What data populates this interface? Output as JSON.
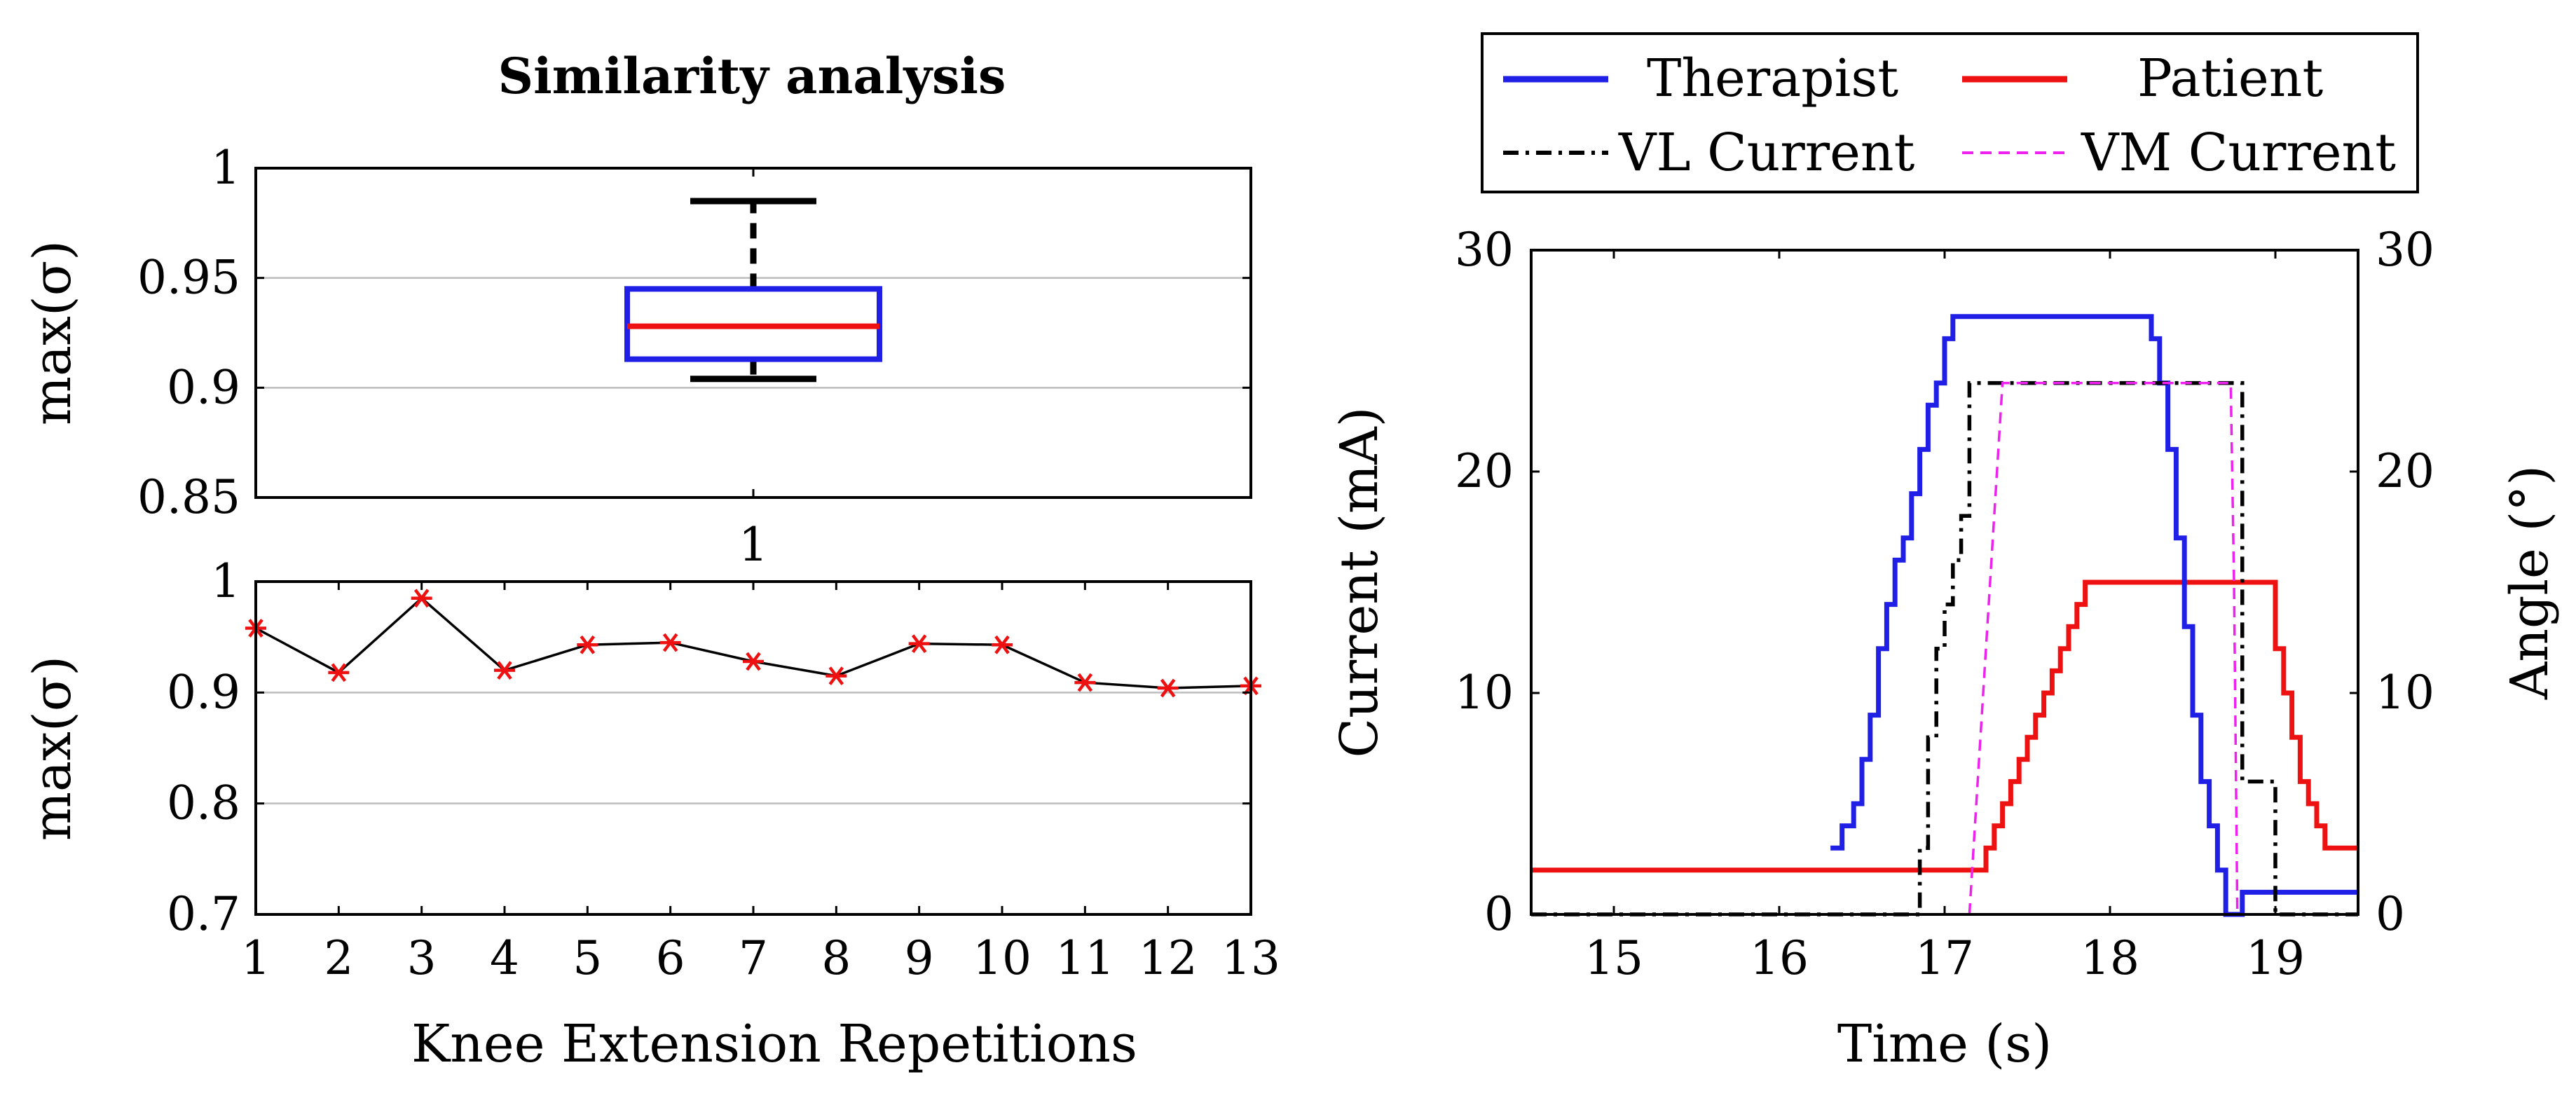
{
  "chart_data": [
    {
      "type": "box",
      "title": "Similarity analysis",
      "xlabel": "",
      "ylabel": "max(σ)",
      "x_tick_labels": [
        "1"
      ],
      "y_tick_labels": [
        "0.85",
        "0.9",
        "0.95",
        "1"
      ],
      "ylim": [
        0.85,
        1.0
      ],
      "yticks": [
        0.85,
        0.9,
        0.95,
        1.0
      ],
      "grid": true,
      "box": {
        "whisker_low": 0.904,
        "q1": 0.913,
        "median": 0.928,
        "q3": 0.945,
        "whisker_high": 0.985
      },
      "colors": {
        "box": "#1f1fe6",
        "median": "#ee1111",
        "whisker": "#000000"
      }
    },
    {
      "type": "line",
      "title": "",
      "xlabel": "Knee Extension Repetitions",
      "ylabel": "max(σ)",
      "x_tick_labels": [
        "1",
        "2",
        "3",
        "4",
        "5",
        "6",
        "7",
        "8",
        "9",
        "10",
        "11",
        "12",
        "13"
      ],
      "y_tick_labels": [
        "0.7",
        "0.8",
        "0.9",
        "1"
      ],
      "xlim": [
        1,
        13
      ],
      "ylim": [
        0.7,
        1.0
      ],
      "yticks": [
        0.7,
        0.8,
        0.9,
        1.0
      ],
      "grid": true,
      "x": [
        1,
        2,
        3,
        4,
        5,
        6,
        7,
        8,
        9,
        10,
        11,
        12,
        13
      ],
      "values": [
        0.958,
        0.918,
        0.985,
        0.92,
        0.943,
        0.945,
        0.928,
        0.915,
        0.944,
        0.943,
        0.909,
        0.904,
        0.906
      ],
      "colors": {
        "line": "#000000",
        "marker": "#ee1111"
      }
    },
    {
      "type": "line",
      "title": "",
      "xlabel": "Time (s)",
      "ylabel": "Current (mA)",
      "y2label": "Angle (°)",
      "x_tick_labels": [
        "15",
        "16",
        "17",
        "18",
        "19"
      ],
      "y_tick_labels": [
        "0",
        "10",
        "20",
        "30"
      ],
      "y2_tick_labels": [
        "0",
        "10",
        "20",
        "30"
      ],
      "xlim": [
        14.5,
        19.5
      ],
      "ylim": [
        0,
        30
      ],
      "y2lim": [
        0,
        30
      ],
      "xticks": [
        15,
        16,
        17,
        18,
        19
      ],
      "yticks": [
        0,
        10,
        20,
        30
      ],
      "legend": {
        "position": "top",
        "entries": [
          "Therapist",
          "Patient",
          "VL Current",
          "VM Current"
        ]
      },
      "series": [
        {
          "name": "Therapist",
          "color": "#1f1fe6",
          "style": "solid",
          "axis": "left",
          "step": true,
          "x": [
            16.31,
            16.38,
            16.45,
            16.5,
            16.55,
            16.6,
            16.65,
            16.7,
            16.75,
            16.8,
            16.85,
            16.9,
            16.95,
            17.0,
            17.05,
            17.1,
            18.25,
            18.3,
            18.35,
            18.4,
            18.45,
            18.5,
            18.55,
            18.6,
            18.65,
            18.7,
            18.75,
            18.8,
            19.5
          ],
          "y": [
            3,
            4,
            5,
            7,
            9,
            12,
            14,
            16,
            17,
            19,
            21,
            23,
            24,
            26,
            27,
            27,
            26,
            24,
            21,
            17,
            13,
            9,
            6,
            4,
            2,
            0,
            0,
            1,
            1
          ]
        },
        {
          "name": "Patient",
          "color": "#ee1111",
          "style": "solid",
          "axis": "right",
          "step": true,
          "x": [
            14.5,
            17.2,
            17.25,
            17.3,
            17.35,
            17.4,
            17.45,
            17.5,
            17.55,
            17.6,
            17.65,
            17.7,
            17.75,
            17.8,
            17.85,
            17.9,
            18.95,
            19.0,
            19.05,
            19.1,
            19.15,
            19.2,
            19.25,
            19.3,
            19.5
          ],
          "y": [
            2,
            2,
            3,
            4,
            5,
            6,
            7,
            8,
            9,
            10,
            11,
            12,
            13,
            14,
            15,
            15,
            15,
            12,
            10,
            8,
            6,
            5,
            4,
            3,
            3
          ]
        },
        {
          "name": "VL Current",
          "color": "#000000",
          "style": "dashdot",
          "axis": "left",
          "step": true,
          "x": [
            14.5,
            16.8,
            16.85,
            16.9,
            16.95,
            17.0,
            17.05,
            17.1,
            17.15,
            18.75,
            18.8,
            18.95,
            19.0,
            19.5
          ],
          "y": [
            0,
            0,
            3,
            8,
            12,
            14,
            16,
            18,
            24,
            24,
            6,
            6,
            0,
            0
          ]
        },
        {
          "name": "VM Current",
          "color": "#ee22ee",
          "style": "dashed",
          "axis": "left",
          "step": false,
          "x": [
            17.15,
            17.35,
            18.73,
            18.75,
            18.77
          ],
          "y": [
            0,
            24,
            24,
            15,
            0
          ]
        }
      ]
    }
  ]
}
